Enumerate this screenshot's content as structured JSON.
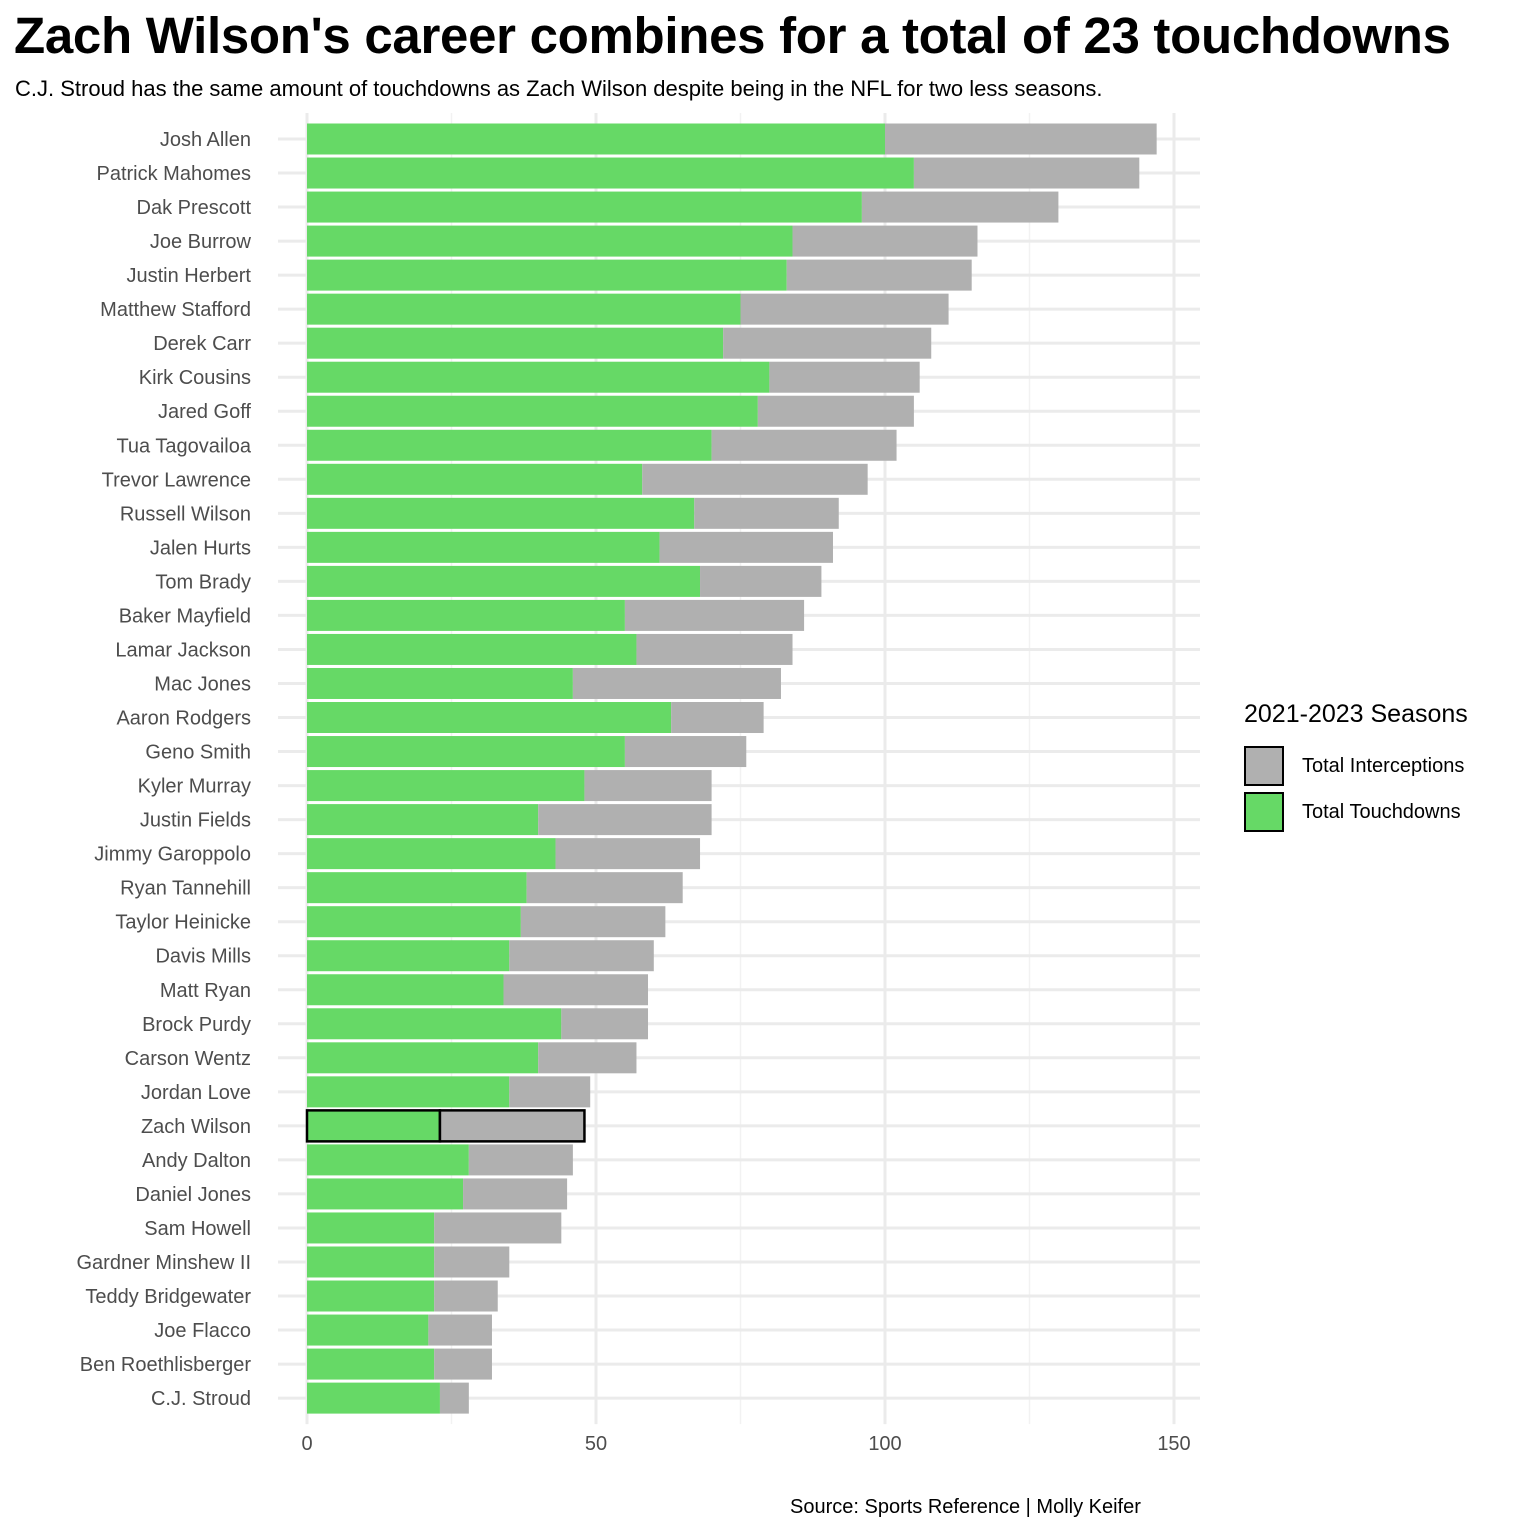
{
  "chart_data": {
    "type": "bar",
    "orientation": "horizontal",
    "stacked": true,
    "title": "Zach Wilson's career combines for a total of 23 touchdowns",
    "subtitle": "C.J. Stroud has the same amount of touchdowns as Zach Wilson despite being in the NFL for two less seasons.",
    "caption": "Source: Sports Reference | Molly Keifer",
    "legend_title": "2021-2023 Seasons",
    "legend_position": "right",
    "grid": true,
    "xlim": [
      0,
      155
    ],
    "xticks": [
      0,
      50,
      100,
      150
    ],
    "highlight": "Zach Wilson",
    "categories": [
      "Josh Allen",
      "Patrick Mahomes",
      "Dak Prescott",
      "Joe Burrow",
      "Justin Herbert",
      "Matthew Stafford",
      "Derek Carr",
      "Kirk Cousins",
      "Jared Goff",
      "Tua Tagovailoa",
      "Trevor Lawrence",
      "Russell Wilson",
      "Jalen Hurts",
      "Tom Brady",
      "Baker Mayfield",
      "Lamar Jackson",
      "Mac Jones",
      "Aaron Rodgers",
      "Geno Smith",
      "Kyler Murray",
      "Justin Fields",
      "Jimmy Garoppolo",
      "Ryan Tannehill",
      "Taylor Heinicke",
      "Davis Mills",
      "Matt Ryan",
      "Brock Purdy",
      "Carson Wentz",
      "Jordan Love",
      "Zach Wilson",
      "Andy Dalton",
      "Daniel Jones",
      "Sam Howell",
      "Gardner Minshew II",
      "Teddy Bridgewater",
      "Joe Flacco",
      "Ben Roethlisberger",
      "C.J. Stroud"
    ],
    "series": [
      {
        "name": "Total Touchdowns",
        "color": "#66d966",
        "values": [
          100,
          105,
          96,
          84,
          83,
          75,
          72,
          80,
          78,
          70,
          58,
          67,
          61,
          68,
          55,
          57,
          46,
          63,
          55,
          48,
          40,
          43,
          38,
          37,
          35,
          34,
          44,
          40,
          35,
          23,
          28,
          27,
          22,
          22,
          22,
          21,
          22,
          23
        ]
      },
      {
        "name": "Total Interceptions",
        "color": "#b0b0b0",
        "values": [
          47,
          39,
          34,
          32,
          32,
          36,
          36,
          26,
          27,
          32,
          39,
          25,
          30,
          21,
          31,
          27,
          36,
          16,
          21,
          22,
          30,
          25,
          27,
          25,
          25,
          25,
          15,
          17,
          14,
          25,
          18,
          18,
          22,
          13,
          11,
          11,
          10,
          5
        ]
      }
    ]
  }
}
